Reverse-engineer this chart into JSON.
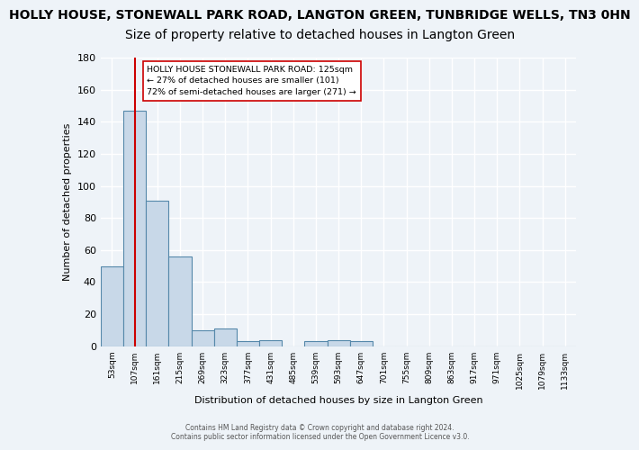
{
  "title": "HOLLY HOUSE, STONEWALL PARK ROAD, LANGTON GREEN, TUNBRIDGE WELLS, TN3 0HN",
  "subtitle": "Size of property relative to detached houses in Langton Green",
  "xlabel": "Distribution of detached houses by size in Langton Green",
  "ylabel": "Number of detached properties",
  "footer_line1": "Contains HM Land Registry data © Crown copyright and database right 2024.",
  "footer_line2": "Contains public sector information licensed under the Open Government Licence v3.0.",
  "bin_labels": [
    "53sqm",
    "107sqm",
    "161sqm",
    "215sqm",
    "269sqm",
    "323sqm",
    "377sqm",
    "431sqm",
    "485sqm",
    "539sqm",
    "593sqm",
    "647sqm",
    "701sqm",
    "755sqm",
    "809sqm",
    "863sqm",
    "917sqm",
    "971sqm",
    "1025sqm",
    "1079sqm",
    "1133sqm"
  ],
  "bar_values": [
    50,
    147,
    91,
    56,
    10,
    11,
    3,
    4,
    0,
    3,
    4,
    3,
    0,
    0,
    0,
    0,
    0,
    0,
    0,
    0,
    0
  ],
  "bar_color": "#c8d8e8",
  "bar_edgecolor": "#5588aa",
  "red_line_x": 1,
  "red_line_color": "#cc0000",
  "annotation_text": "HOLLY HOUSE STONEWALL PARK ROAD: 125sqm\n← 27% of detached houses are smaller (101)\n72% of semi-detached houses are larger (271) →",
  "annotation_box_color": "#ffffff",
  "annotation_box_edgecolor": "#cc0000",
  "ylim": [
    0,
    180
  ],
  "yticks": [
    0,
    20,
    40,
    60,
    80,
    100,
    120,
    140,
    160,
    180
  ],
  "bg_color": "#eef3f8",
  "plot_bg_color": "#eef3f8",
  "grid_color": "#ffffff",
  "title_fontsize": 10,
  "subtitle_fontsize": 10
}
